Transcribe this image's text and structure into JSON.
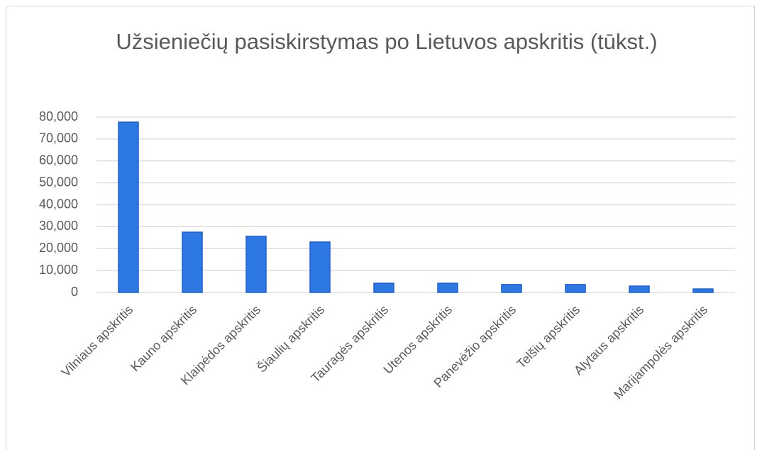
{
  "chart_data": {
    "type": "bar",
    "title": "Užsieniečių pasiskirstymas po Lietuvos apskritis (tūkst.)",
    "categories": [
      "Vilniaus apskritis",
      "Kauno apskritis",
      "Klaipėdos apskritis",
      "Šiaulių apskritis",
      "Tauragės apskritis",
      "Utenos apskritis",
      "Panevėžio apskritis",
      "Telšių apskritis",
      "Alytaus apskritis",
      "Marijampolės apskritis"
    ],
    "values": [
      77700,
      27500,
      25600,
      23000,
      4200,
      4200,
      3600,
      3600,
      2900,
      1600
    ],
    "color": "#2e78e4",
    "ylim": [
      0,
      80000
    ],
    "yticks": [
      0,
      {
        "value": 10000,
        "label": "10,000"
      },
      {
        "value": 20000,
        "label": "20,000"
      },
      {
        "value": 30000,
        "label": "30,000"
      },
      {
        "value": 40000,
        "label": "40,000"
      },
      {
        "value": 50000,
        "label": "50,000"
      },
      {
        "value": 60000,
        "label": "60,000"
      },
      {
        "value": 70000,
        "label": "70,000"
      },
      {
        "value": 80000,
        "label": "80,000"
      }
    ],
    "grid": true
  }
}
